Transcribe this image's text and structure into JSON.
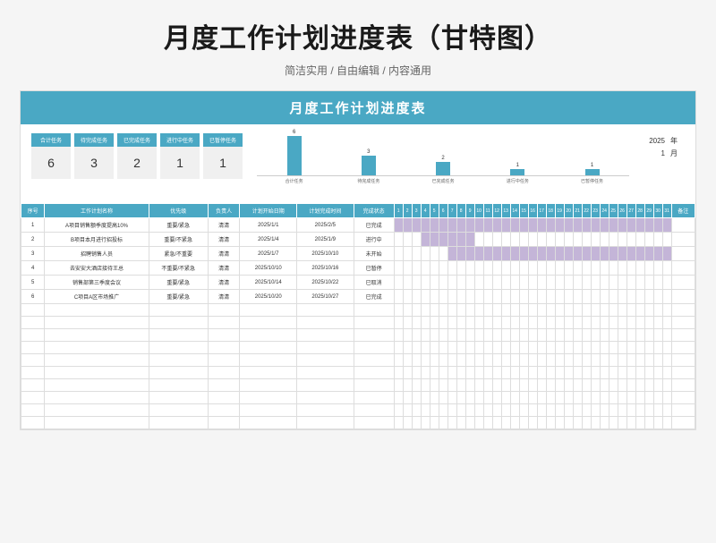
{
  "page_title": "月度工作计划进度表（甘特图）",
  "subtitle": "简洁实用 / 自由编辑 / 内容通用",
  "banner": "月度工作计划进度表",
  "colors": {
    "primary": "#4aa8c4",
    "gantt_fill": "#c4b5d8",
    "stat_bg": "#f0f0f0"
  },
  "year": "2025",
  "year_unit": "年",
  "month": "1",
  "month_unit": "月",
  "stats": [
    {
      "label": "合计任务",
      "value": "6"
    },
    {
      "label": "待完成任务",
      "value": "3"
    },
    {
      "label": "已完成任务",
      "value": "2"
    },
    {
      "label": "进行中任务",
      "value": "1"
    },
    {
      "label": "已暂停任务",
      "value": "1"
    }
  ],
  "chart": {
    "type": "bar",
    "ymax": 6,
    "bar_color": "#4aa8c4",
    "categories": [
      "合计任务",
      "待完成任务",
      "已完成任务",
      "进行中任务",
      "已暂停任务"
    ],
    "values": [
      6,
      3,
      2,
      1,
      1
    ]
  },
  "headers": {
    "seq": "序号",
    "name": "工作计划名称",
    "priority": "优先级",
    "owner": "负责人",
    "start": "计划开始日期",
    "end": "计划完成时间",
    "status": "完成状态",
    "remark": "备注"
  },
  "days": 31,
  "rows": [
    {
      "seq": "1",
      "name": "A项目销售额季度提高10%",
      "priority": "重要/紧急",
      "owner": "清清",
      "start": "2025/1/1",
      "end": "2025/2/5",
      "status": "已完成",
      "gantt_start": 1,
      "gantt_end": 31
    },
    {
      "seq": "2",
      "name": "B项目本月进行招投标",
      "priority": "重要/不紧急",
      "owner": "清清",
      "start": "2025/1/4",
      "end": "2025/1/9",
      "status": "进行中",
      "gantt_start": 4,
      "gantt_end": 9
    },
    {
      "seq": "3",
      "name": "招聘销售人员",
      "priority": "紧急/不重要",
      "owner": "清清",
      "start": "2025/1/7",
      "end": "2025/10/10",
      "status": "未开始",
      "gantt_start": 7,
      "gantt_end": 31
    },
    {
      "seq": "4",
      "name": "去安安大酒店接待王总",
      "priority": "不重要/不紧急",
      "owner": "清清",
      "start": "2025/10/10",
      "end": "2025/10/16",
      "status": "已暂停",
      "gantt_start": 0,
      "gantt_end": 0
    },
    {
      "seq": "5",
      "name": "销售部第三季度会议",
      "priority": "重要/紧急",
      "owner": "清清",
      "start": "2025/10/14",
      "end": "2025/10/22",
      "status": "已取消",
      "gantt_start": 0,
      "gantt_end": 0
    },
    {
      "seq": "6",
      "name": "C项目A区市场推广",
      "priority": "重要/紧急",
      "owner": "清清",
      "start": "2025/10/20",
      "end": "2025/10/27",
      "status": "已完成",
      "gantt_start": 0,
      "gantt_end": 0
    }
  ],
  "empty_rows": 10
}
